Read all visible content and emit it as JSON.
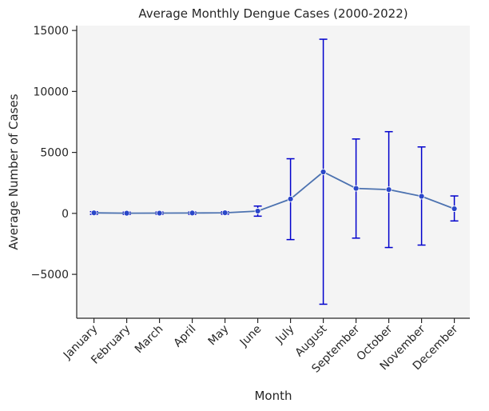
{
  "chart_data": {
    "type": "line",
    "title": "Average Monthly Dengue Cases (2000-2022)",
    "xlabel": "Month",
    "ylabel": "Average Number of Cases",
    "categories": [
      "January",
      "February",
      "March",
      "April",
      "May",
      "June",
      "July",
      "August",
      "September",
      "October",
      "November",
      "December"
    ],
    "series": [
      {
        "values": [
          40,
          15,
          20,
          30,
          50,
          190,
          1180,
          3400,
          2050,
          1950,
          1400,
          380
        ],
        "error_low": [
          -80,
          -80,
          -70,
          -80,
          -70,
          -230,
          -2150,
          -7450,
          -2030,
          -2800,
          -2600,
          -620
        ],
        "error_high": [
          140,
          100,
          110,
          110,
          130,
          600,
          4480,
          14280,
          6100,
          6700,
          5450,
          1430
        ]
      }
    ],
    "ylim": [
      -8600,
      15400
    ],
    "yticks": [
      -5000,
      0,
      5000,
      10000,
      15000
    ],
    "ytick_labels": [
      "−5000",
      "0",
      "5000",
      "10000",
      "15000"
    ],
    "grid": false,
    "colors": {
      "line": "#4c72b0",
      "marker": "#2a47c8",
      "errorbar": "#0000cc",
      "plot_bg": "#f4f4f4",
      "axis": "#262626"
    }
  }
}
